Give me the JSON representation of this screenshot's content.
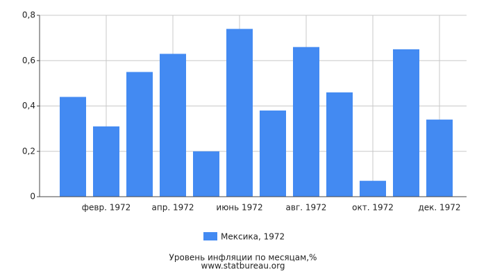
{
  "chart_data": {
    "type": "bar",
    "title": "Уровень инфляции по месяцам,%",
    "source": "www.statbureau.org",
    "categories": [
      null,
      "февр. 1972",
      null,
      "апр. 1972",
      null,
      "июнь 1972",
      null,
      "авг. 1972",
      null,
      "окт. 1972",
      null,
      "дек. 1972"
    ],
    "series": [
      {
        "name": "Мексика, 1972",
        "color": "#438af2",
        "values": [
          0.44,
          0.31,
          0.55,
          0.63,
          0.2,
          0.74,
          0.38,
          0.66,
          0.46,
          0.07,
          0.65,
          0.34
        ]
      }
    ],
    "ylim": [
      0,
      0.8
    ],
    "yticks": [
      0,
      {
        "value": 0.2,
        "label": "0,2"
      },
      {
        "value": 0.4,
        "label": "0,4"
      },
      {
        "value": 0.6,
        "label": "0,6"
      },
      {
        "value": 0.8,
        "label": "0,8"
      }
    ],
    "grid": true
  }
}
